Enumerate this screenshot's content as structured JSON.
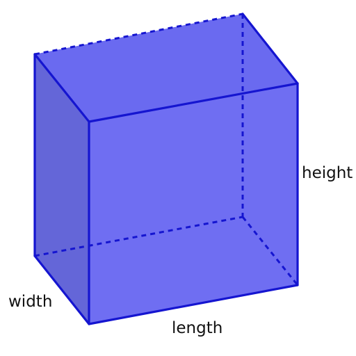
{
  "diagram": {
    "labels": {
      "height": "height",
      "width": "width",
      "length": "length"
    },
    "colors": {
      "face_front": "#6f6ef2",
      "face_top": "#6a6af0",
      "face_side": "#6466d8",
      "face_back": "#7474ee",
      "edge": "#1515d0",
      "label": "#111111"
    }
  }
}
